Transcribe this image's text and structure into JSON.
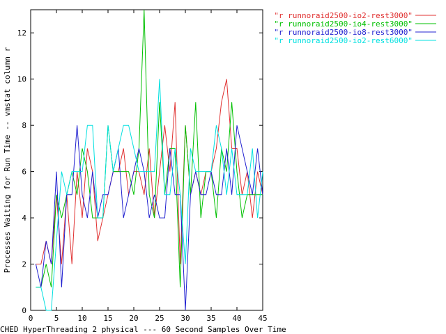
{
  "chart_data": {
    "type": "line",
    "title": "",
    "xlabel": "CHED HyperThreading 2 physical --- 60 Second Samples Over Time",
    "ylabel": "Processes Waiting for Run Time -- vmstat column r",
    "xlim": [
      0,
      45
    ],
    "ylim": [
      0,
      13
    ],
    "xticks": [
      0,
      5,
      10,
      15,
      20,
      25,
      30,
      35,
      40,
      45
    ],
    "yticks": [
      0,
      2,
      4,
      6,
      8,
      10,
      12
    ],
    "grid": false,
    "legend_position": "outside-top-right",
    "x": [
      1,
      2,
      3,
      4,
      5,
      6,
      7,
      8,
      9,
      10,
      11,
      12,
      13,
      14,
      15,
      16,
      17,
      18,
      19,
      20,
      21,
      22,
      23,
      24,
      25,
      26,
      27,
      28,
      29,
      30,
      31,
      32,
      33,
      34,
      35,
      36,
      37,
      38,
      39,
      40,
      41,
      42,
      43,
      44,
      45
    ],
    "series": [
      {
        "name": "\"r runnoraid2500-io2-rest3000\"",
        "color": "#e03030",
        "values": [
          2,
          2,
          3,
          2,
          5,
          2,
          5,
          2,
          6,
          4,
          7,
          6,
          3,
          4,
          5,
          6,
          6,
          7,
          5,
          6,
          6,
          5,
          7,
          4,
          6,
          8,
          6,
          9,
          2,
          8,
          5,
          6,
          5,
          6,
          6,
          7,
          9,
          10,
          7,
          7,
          5,
          6,
          4,
          6,
          5
        ]
      },
      {
        "name": "\"r runnoraid2500-io4-rest3000\"",
        "color": "#00c000",
        "values": [
          1,
          1,
          2,
          1,
          5,
          4,
          5,
          6,
          5,
          7,
          6,
          4,
          4,
          4,
          8,
          6,
          6,
          6,
          6,
          5,
          7,
          13,
          5,
          4,
          9,
          5,
          7,
          7,
          1,
          8,
          5,
          9,
          4,
          6,
          6,
          4,
          7,
          6,
          9,
          6,
          4,
          5,
          5,
          5,
          5
        ]
      },
      {
        "name": "\"r runnoraid2500-io8-rest3000\"",
        "color": "#2020d0",
        "values": [
          2,
          1,
          3,
          2,
          6,
          1,
          5,
          5,
          8,
          5,
          4,
          6,
          4,
          5,
          5,
          6,
          7,
          4,
          5,
          6,
          7,
          6,
          4,
          5,
          4,
          4,
          7,
          5,
          5,
          0,
          5,
          6,
          5,
          5,
          6,
          5,
          5,
          7,
          5,
          8,
          7,
          6,
          5,
          7,
          5
        ]
      },
      {
        "name": "\"r runnoraid2500-io2-rest6000\"",
        "color": "#00e0e0",
        "values": [
          1,
          1,
          0,
          0,
          3,
          6,
          5,
          6,
          6,
          6,
          8,
          8,
          4,
          4,
          8,
          6,
          7,
          8,
          8,
          7,
          6,
          6,
          6,
          6,
          10,
          5,
          5,
          7,
          5,
          2,
          7,
          6,
          6,
          6,
          6,
          8,
          7,
          5,
          7,
          5,
          5,
          5,
          7,
          4,
          6
        ]
      }
    ]
  }
}
